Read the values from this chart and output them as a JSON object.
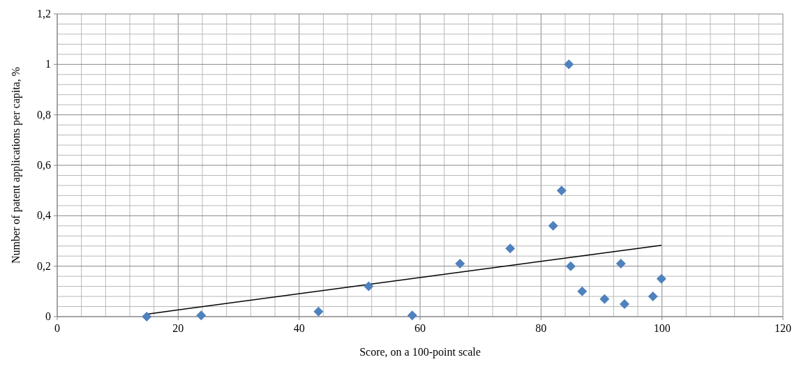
{
  "chart_data": {
    "type": "scatter",
    "xlabel": "Score, on a 100-point scale",
    "ylabel": "Number of patent applications per capita, %",
    "xlim": [
      0,
      120
    ],
    "xticks": [
      0,
      20,
      40,
      60,
      80,
      100,
      120
    ],
    "ylim": [
      0,
      1.2
    ],
    "yticks": [
      0,
      {
        "value": 0.2,
        "label": "0,2"
      },
      {
        "value": 0.4,
        "label": "0,4"
      },
      {
        "value": 0.6,
        "label": "0,6"
      },
      {
        "value": 0.8,
        "label": "0,8"
      },
      1,
      {
        "value": 1.2,
        "label": "1,2"
      }
    ],
    "grid": true,
    "series": [
      {
        "marker": "diamond",
        "color": "#4f81bd",
        "x": [
          14.8,
          23.8,
          43.2,
          51.5,
          58.7,
          66.6,
          74.9,
          82.0,
          83.4,
          84.6,
          84.9,
          86.8,
          90.5,
          93.2,
          93.8,
          98.5,
          99.9
        ],
        "values": [
          0,
          0.005,
          0.02,
          0.12,
          0.005,
          0.21,
          0.27,
          0.36,
          0.5,
          1.0,
          0.2,
          0.1,
          0.07,
          0.21,
          0.05,
          0.08,
          0.15
        ]
      },
      {
        "type": "line",
        "color": "#000000",
        "x": [
          14.8,
          99.9
        ],
        "values": [
          0.01,
          0.283
        ]
      }
    ]
  }
}
